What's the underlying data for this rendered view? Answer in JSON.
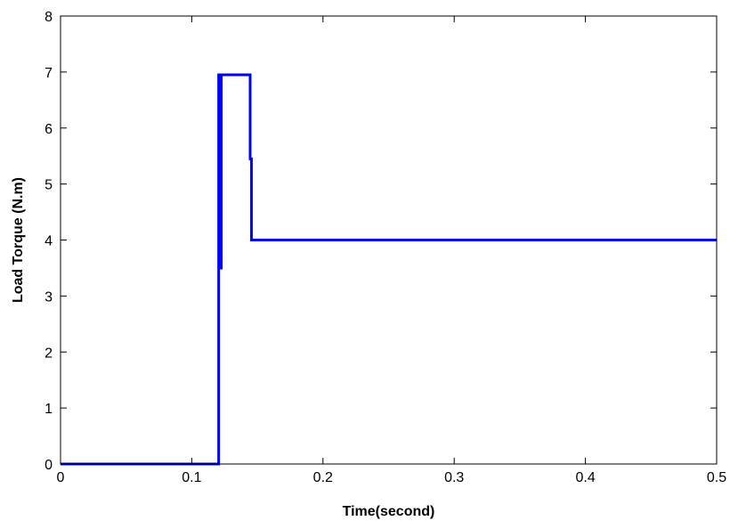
{
  "chart_data": {
    "type": "line",
    "title": "",
    "xlabel": "Time(second)",
    "ylabel": "Load Torque (N.m)",
    "xlim": [
      0,
      0.5
    ],
    "ylim": [
      0,
      8
    ],
    "xticks": [
      0,
      0.1,
      0.2,
      0.3,
      0.4,
      0.5
    ],
    "xtick_labels": [
      "0",
      "0.1",
      "0.2",
      "0.3",
      "0.4",
      "0.5"
    ],
    "yticks": [
      0,
      1,
      2,
      3,
      4,
      5,
      6,
      7,
      8
    ],
    "ytick_labels": [
      "0",
      "1",
      "2",
      "3",
      "4",
      "5",
      "6",
      "7",
      "8"
    ],
    "grid": false,
    "legend": "none",
    "series": [
      {
        "color": "#0000ff",
        "x": [
          0,
          0.1205,
          0.1205,
          0.1215,
          0.1215,
          0.1225,
          0.1225,
          0.1445,
          0.1445,
          0.1455,
          0.1455,
          0.5
        ],
        "y": [
          0,
          0,
          6.95,
          6.95,
          3.5,
          3.5,
          6.95,
          6.95,
          5.45,
          5.45,
          4.0,
          4.0
        ]
      }
    ]
  }
}
